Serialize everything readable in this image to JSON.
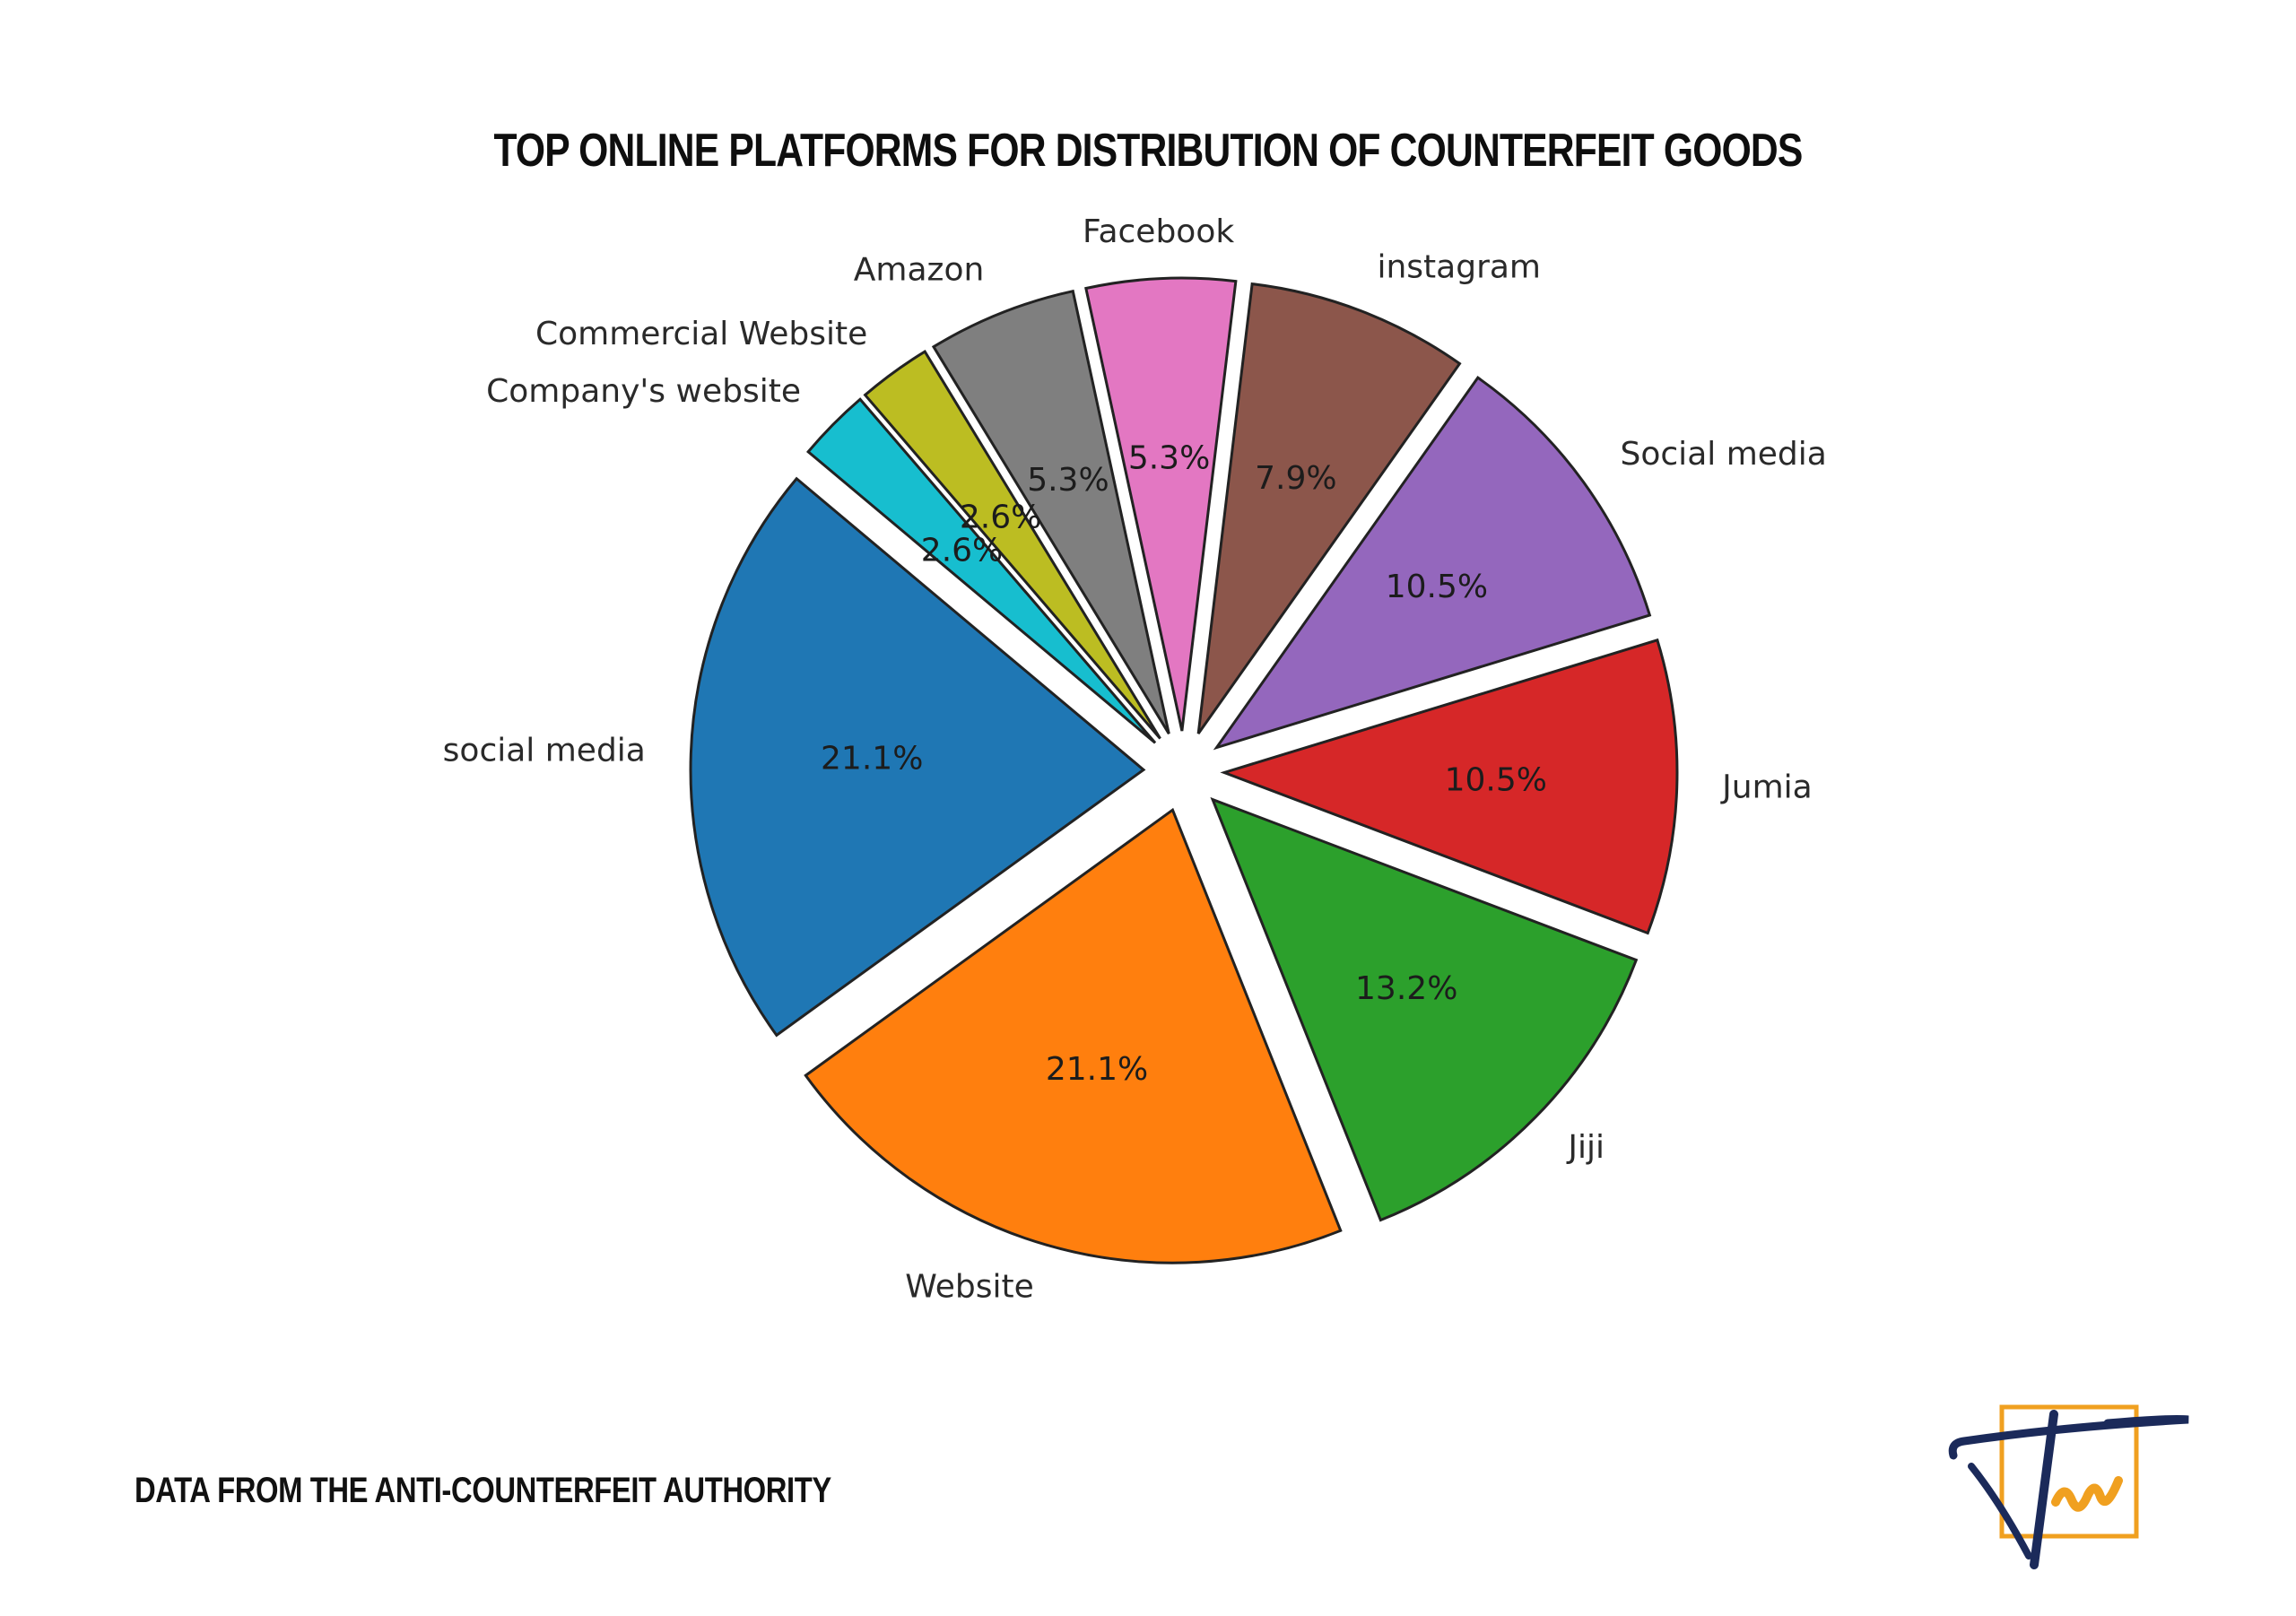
{
  "header": {
    "title": "TOP ONLINE PLATFORMS FOR DISTRIBUTION OF COUNTERFEIT GOODS"
  },
  "footer": {
    "source": "DATA FROM THE ANTI-COUNTERFEIT AUTHORITY"
  },
  "logo": {
    "icon": "brand-logo-icon",
    "colors": {
      "primary": "#1b2a5a",
      "accent": "#f0a020"
    }
  },
  "chart_data": {
    "type": "pie",
    "title": "",
    "start_angle_deg": 140,
    "direction": "counterclockwise",
    "exploded": true,
    "categories": [
      "social media",
      "Website",
      "Jiji",
      "Jumia",
      "Social media",
      "instagram",
      "Facebook",
      "Amazon",
      "Commercial Website",
      "Company's website"
    ],
    "values": [
      21.1,
      21.1,
      13.2,
      10.5,
      10.5,
      7.9,
      5.3,
      5.3,
      2.6,
      2.6
    ],
    "value_labels": [
      "21.1%",
      "21.1%",
      "13.2%",
      "10.5%",
      "10.5%",
      "7.9%",
      "5.3%",
      "5.3%",
      "2.6%",
      "2.6%"
    ],
    "colors": [
      "#1f77b4",
      "#ff7f0e",
      "#2ca02c",
      "#d62728",
      "#9467bd",
      "#8c564b",
      "#e377c2",
      "#7f7f7f",
      "#bcbd22",
      "#17becf"
    ]
  }
}
